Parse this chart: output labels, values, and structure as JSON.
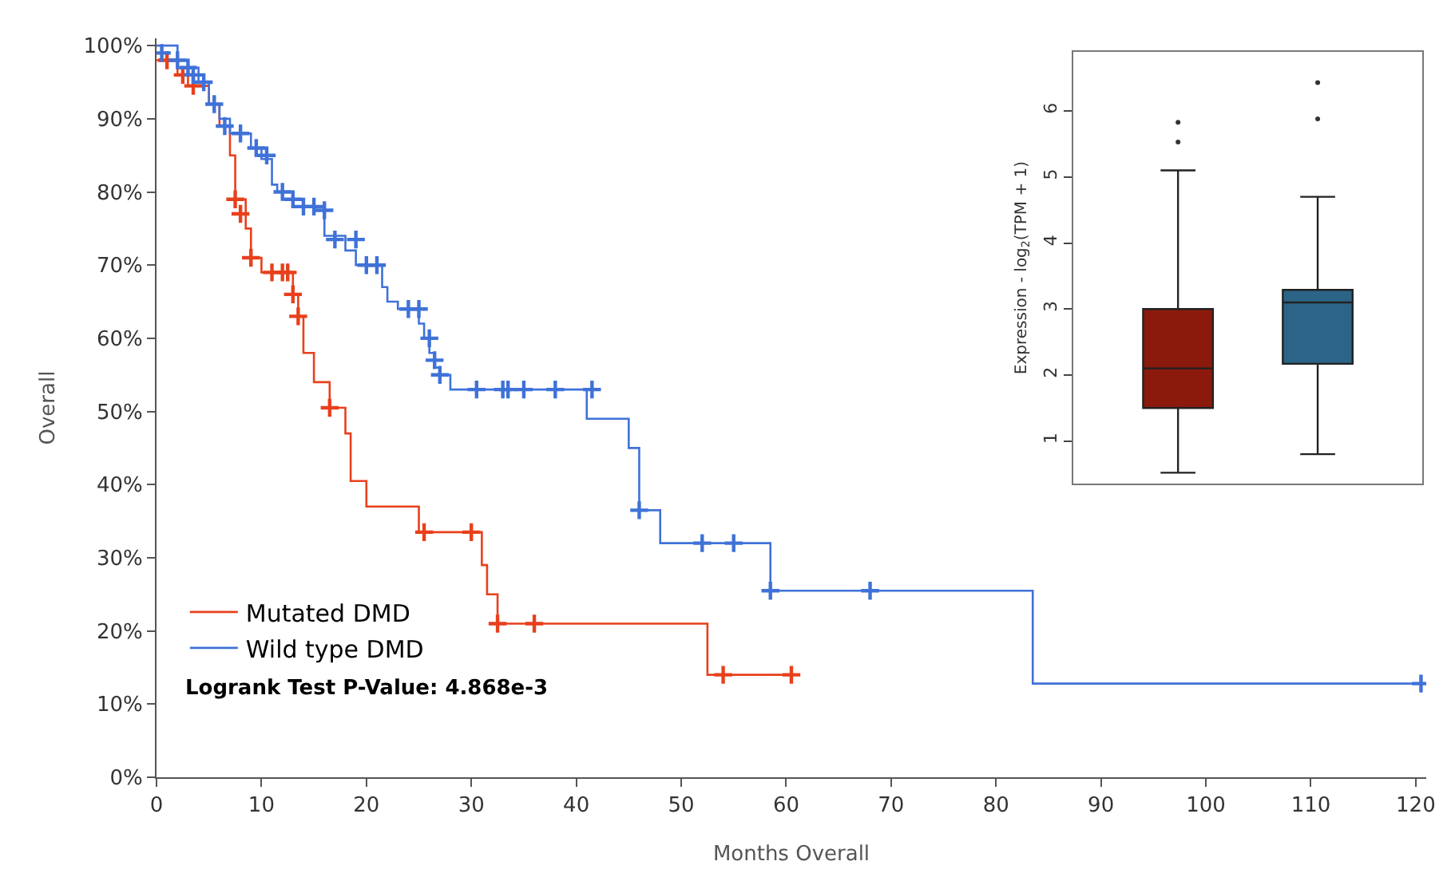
{
  "chart_data": [
    {
      "type": "step",
      "xlabel": "Months Overall",
      "ylabel": "Overall",
      "xlim": [
        0,
        121
      ],
      "xticks": [
        0,
        10,
        20,
        30,
        40,
        50,
        60,
        70,
        80,
        90,
        100,
        110,
        120
      ],
      "ylim": [
        0,
        101
      ],
      "yticks": [
        {
          "value": 0,
          "label": "0%"
        },
        {
          "value": 10,
          "label": "10%"
        },
        {
          "value": 20,
          "label": "20%"
        },
        {
          "value": 30,
          "label": "30%"
        },
        {
          "value": 40,
          "label": "40%"
        },
        {
          "value": 50,
          "label": "50%"
        },
        {
          "value": 60,
          "label": "60%"
        },
        {
          "value": 70,
          "label": "70%"
        },
        {
          "value": 80,
          "label": "80%"
        },
        {
          "value": 90,
          "label": "90%"
        },
        {
          "value": 100,
          "label": "100%"
        }
      ],
      "legend": "bottom left",
      "annotations": [
        "Logrank Test P-Value: 4.868e-3"
      ],
      "series": [
        {
          "name": "Mutated DMD",
          "color": "#e8401c",
          "x": [
            0,
            2,
            3,
            5,
            6,
            7,
            7.5,
            8.5,
            9,
            10,
            13,
            13.5,
            14,
            15,
            16.5,
            18,
            18.5,
            20,
            25,
            31,
            31.5,
            32.5,
            52.5,
            60.5
          ],
          "values": [
            98,
            96,
            94.5,
            92,
            89,
            85,
            79,
            75,
            71,
            69,
            66,
            63,
            58,
            54,
            50.5,
            47,
            40.5,
            37,
            33.5,
            29,
            25,
            21,
            14,
            14
          ]
        },
        {
          "name": "Wild type DMD",
          "color": "#3f72d8",
          "x": [
            0,
            2,
            3,
            4,
            5,
            6,
            7,
            9,
            10,
            11,
            11.5,
            12,
            13,
            16,
            18,
            19,
            21.5,
            22,
            23,
            25,
            25.5,
            26,
            26.5,
            27,
            28,
            41,
            45,
            46,
            48,
            58.5,
            83.5,
            120.5
          ],
          "values": [
            100,
            98,
            97,
            95,
            92,
            90,
            88,
            86,
            84.5,
            81,
            80,
            79,
            78,
            74,
            72,
            70,
            67,
            65,
            64,
            62,
            60,
            58,
            56,
            55,
            53,
            49,
            45,
            36.5,
            32,
            25.5,
            12.8,
            12.8
          ]
        },
        {
          "type": "scatter",
          "marker": "cross",
          "color": "#e8401c",
          "x": [
            1,
            2.5,
            3.5,
            7.5,
            8,
            9,
            11,
            12,
            12.5,
            13,
            13.5,
            16.5,
            25.5,
            30,
            32.5,
            36,
            54,
            60.5
          ],
          "values": [
            98,
            96,
            94.5,
            79,
            77,
            71,
            69,
            69,
            69,
            66,
            63,
            50.5,
            33.5,
            33.5,
            21,
            21,
            14,
            14
          ]
        },
        {
          "type": "scatter",
          "marker": "cross",
          "color": "#3f72d8",
          "x": [
            0.5,
            2,
            3,
            3.5,
            4.5,
            5.5,
            6.5,
            8,
            9.5,
            10.5,
            12,
            13,
            14,
            15,
            16,
            17,
            19,
            20,
            21,
            24,
            25,
            26,
            26.5,
            27,
            30.5,
            33,
            33.5,
            35,
            38,
            41.5,
            46,
            52,
            55,
            58.5,
            68,
            120.5
          ],
          "values": [
            99,
            98,
            97,
            96,
            95,
            92,
            89,
            88,
            86,
            85,
            80,
            79,
            78,
            78,
            77.5,
            73.5,
            73.5,
            70,
            70,
            64,
            64,
            60,
            57,
            55,
            53,
            53,
            53,
            53,
            53,
            53,
            36.5,
            32,
            32,
            25.5,
            25.5,
            12.8
          ]
        }
      ]
    },
    {
      "type": "box",
      "ylabel": "Expression - log$_{2}$(TPM + 1)",
      "categories": [
        null,
        null
      ],
      "ylim": [
        0.35,
        6.9
      ],
      "yticks": [
        1,
        2,
        3,
        4,
        5,
        6
      ],
      "tick_labels": "y",
      "legend": false,
      "boxes": [
        {
          "low": 0.52,
          "q1": 1.5,
          "median": 2.1,
          "q3": 3.0,
          "high": 5.1,
          "outliers": [
            5.53,
            5.83
          ]
        },
        {
          "low": 0.8,
          "q1": 2.17,
          "median": 3.1,
          "q3": 3.29,
          "high": 4.7,
          "outliers": [
            5.88,
            6.43
          ]
        }
      ],
      "colors": [
        "#8b1a0c",
        "#2b6487"
      ]
    }
  ]
}
